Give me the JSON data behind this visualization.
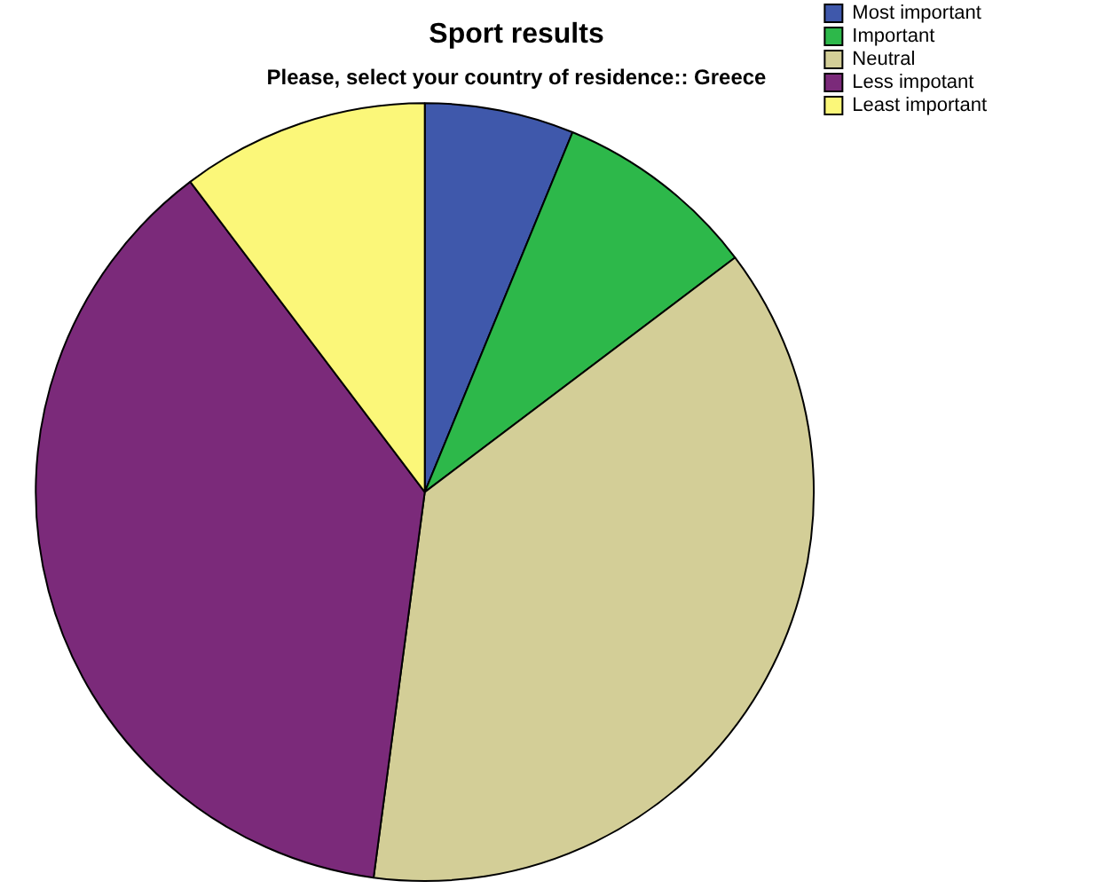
{
  "chart_data": {
    "type": "pie",
    "title": "Sport results",
    "subtitle": "Please, select your country of residence:: Greece",
    "categories": [
      "Most important",
      "Important",
      "Neutral",
      "Less impotant",
      "Least important"
    ],
    "values": [
      6.2,
      8.5,
      37.4,
      37.6,
      10.3
    ],
    "colors": [
      "#3f58ab",
      "#2db84a",
      "#d3ce97",
      "#7b2a7a",
      "#fbf779"
    ],
    "legend": "top right"
  }
}
